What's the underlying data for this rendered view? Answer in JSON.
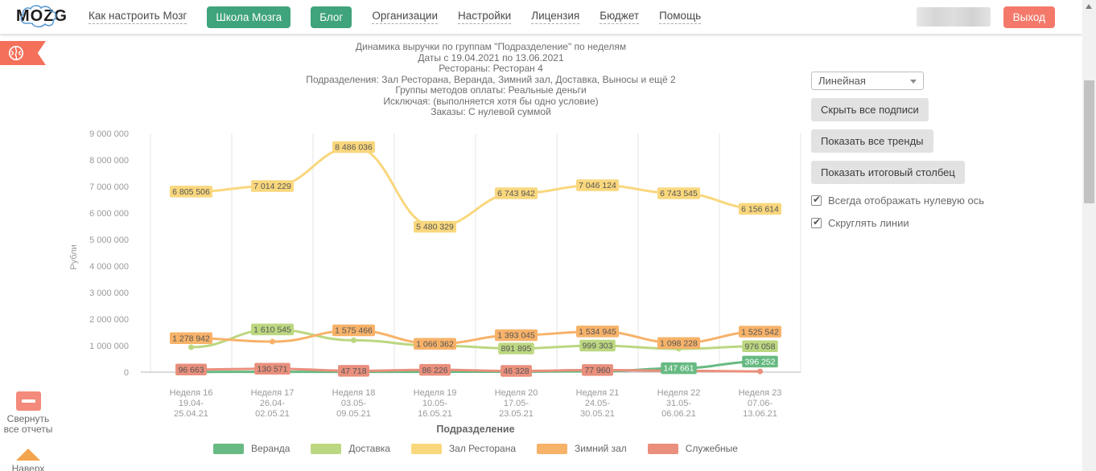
{
  "header": {
    "logo_text": "MOZG",
    "items": [
      {
        "label": "Как настроить Мозг",
        "type": "link"
      },
      {
        "label": "Школа Мозга",
        "type": "button"
      },
      {
        "label": "Блог",
        "type": "button"
      },
      {
        "label": "Организации",
        "type": "link"
      },
      {
        "label": "Настройки",
        "type": "link"
      },
      {
        "label": "Лицензия",
        "type": "link"
      },
      {
        "label": "Бюджет",
        "type": "link"
      },
      {
        "label": "Помощь",
        "type": "link"
      }
    ],
    "logout_label": "Выход",
    "accent_green": "#3fa37c",
    "accent_red": "#f4796a"
  },
  "controls": {
    "chart_type_value": "Линейная",
    "buttons": [
      "Скрыть все подписи",
      "Показать все тренды",
      "Показать итоговый столбец"
    ],
    "checkboxes": [
      {
        "label": "Всегда отображать нулевую ось",
        "checked": true
      },
      {
        "label": "Скруглять линии",
        "checked": true
      }
    ]
  },
  "sidebar": {
    "collapse_label_line1": "Свернуть",
    "collapse_label_line2": "все отчеты",
    "scroll_top_label": "Наверх"
  },
  "chart_data": {
    "type": "line",
    "title_lines": [
      "Динамика выручки по группам \"Подразделение\" по неделям",
      "Даты с 19.04.2021 по 13.06.2021",
      "Рестораны: Ресторан 4",
      "Подразделения: Зал Ресторана, Веранда, Зимний зал, Доставка, Выносы и ещё 2",
      "Группы методов оплаты: Реальные деньги",
      "Исключая: (выполняется хотя бы одно условие)",
      "Заказы: С нулевой суммой"
    ],
    "ylabel": "Рубли",
    "xlabel": "Подразделение",
    "ylim": [
      0,
      9000000
    ],
    "ytick_step": 1000000,
    "grid": "vertical-only",
    "legend_position": "bottom",
    "smoothed_lines": true,
    "categories": [
      {
        "week": "Неделя 16",
        "from": "19.04-",
        "to": "25.04.21"
      },
      {
        "week": "Неделя 17",
        "from": "26.04-",
        "to": "02.05.21"
      },
      {
        "week": "Неделя 18",
        "from": "03.05-",
        "to": "09.05.21"
      },
      {
        "week": "Неделя 19",
        "from": "10.05-",
        "to": "16.05.21"
      },
      {
        "week": "Неделя 20",
        "from": "17.05-",
        "to": "23.05.21"
      },
      {
        "week": "Неделя 21",
        "from": "24.05-",
        "to": "30.05.21"
      },
      {
        "week": "Неделя 22",
        "from": "31.05-",
        "to": "06.06.21"
      },
      {
        "week": "Неделя 23",
        "from": "07.06-",
        "to": "13.06.21"
      }
    ],
    "series": [
      {
        "name": "Веранда",
        "color": "#67ba82",
        "label_text_color": "#ffffff",
        "values": [
          8000,
          12000,
          10000,
          12000,
          15000,
          30000,
          147661,
          396252
        ],
        "show_labels": [
          false,
          false,
          false,
          false,
          false,
          false,
          true,
          true
        ]
      },
      {
        "name": "Доставка",
        "color": "#bcd781",
        "label_text_color": "#555555",
        "values": [
          940000,
          1610545,
          1200000,
          1000000,
          891895,
          999303,
          880000,
          976058
        ],
        "show_labels": [
          false,
          true,
          false,
          false,
          true,
          true,
          false,
          true
        ]
      },
      {
        "name": "Зал Ресторана",
        "color": "#f9d77d",
        "label_text_color": "#555555",
        "values": [
          6805506,
          7014229,
          8486036,
          5480329,
          6743942,
          7046124,
          6743545,
          6156614
        ],
        "show_labels": [
          true,
          true,
          true,
          true,
          true,
          true,
          true,
          true
        ]
      },
      {
        "name": "Зимний зал",
        "color": "#f7b269",
        "label_text_color": "#555555",
        "values": [
          1278942,
          1150000,
          1575466,
          1066362,
          1393045,
          1534945,
          1098228,
          1525542
        ],
        "show_labels": [
          true,
          false,
          true,
          true,
          true,
          true,
          true,
          true
        ]
      },
      {
        "name": "Служебные",
        "color": "#e98f7c",
        "label_text_color": "#555555",
        "values": [
          96663,
          130571,
          47718,
          86226,
          46328,
          77960,
          50000,
          28000
        ],
        "show_labels": [
          true,
          true,
          true,
          true,
          true,
          true,
          false,
          false
        ]
      }
    ]
  }
}
